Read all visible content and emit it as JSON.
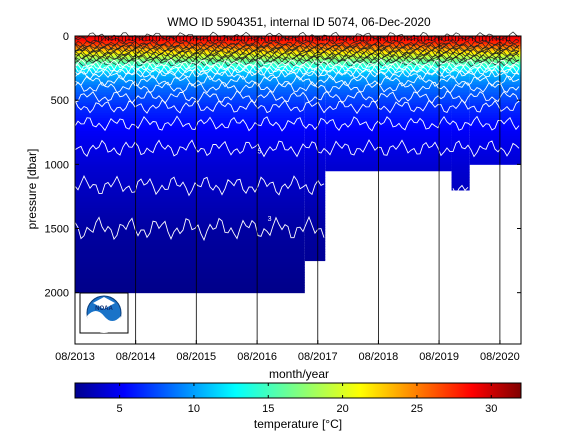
{
  "chart_data": {
    "type": "heatmap",
    "title": "WMO ID 5904351, internal ID 5074, 06-Dec-2020",
    "xlabel": "month/year",
    "ylabel": "pressure [dbar]",
    "x_ticks": [
      "08/2013",
      "08/2014",
      "08/2015",
      "08/2016",
      "08/2017",
      "08/2018",
      "08/2019",
      "08/2020"
    ],
    "x_start": "2013-08-01",
    "x_end": "2020-12-06",
    "y_ticks": [
      0,
      500,
      1000,
      1500,
      2000
    ],
    "ylim": [
      0,
      2400
    ],
    "y_reversed": true,
    "colorbar": {
      "label": "temperature [°C]",
      "ticks": [
        5,
        10,
        15,
        20,
        25,
        30
      ],
      "range": [
        2,
        32
      ],
      "colormap": "jet"
    },
    "profile_depth_segments": [
      {
        "from": "2013-08-01",
        "to": "2017-05-15",
        "max_pressure": 2000
      },
      {
        "from": "2017-05-15",
        "to": "2017-09-15",
        "max_pressure": 1750
      },
      {
        "from": "2017-09-15",
        "to": "2019-10-15",
        "max_pressure": 1050
      },
      {
        "from": "2019-10-15",
        "to": "2020-02-01",
        "max_pressure": 1200
      },
      {
        "from": "2020-02-01",
        "to": "2020-12-06",
        "max_pressure": 1000
      }
    ],
    "temperature_profile": [
      {
        "pressure": 0,
        "temperature": 29
      },
      {
        "pressure": 60,
        "temperature": 27
      },
      {
        "pressure": 120,
        "temperature": 22
      },
      {
        "pressure": 200,
        "temperature": 16
      },
      {
        "pressure": 300,
        "temperature": 11
      },
      {
        "pressure": 400,
        "temperature": 9
      },
      {
        "pressure": 550,
        "temperature": 7
      },
      {
        "pressure": 750,
        "temperature": 5.5
      },
      {
        "pressure": 1000,
        "temperature": 4.5
      },
      {
        "pressure": 1500,
        "temperature": 3
      },
      {
        "pressure": 2000,
        "temperature": 2.3
      }
    ],
    "isotherm_labels": [
      {
        "text": "5",
        "date": "2016-08-15",
        "pressure": 915
      },
      {
        "text": "3",
        "date": "2016-10-15",
        "pressure": 1440
      }
    ]
  },
  "logo": {
    "text": "NOAA"
  }
}
